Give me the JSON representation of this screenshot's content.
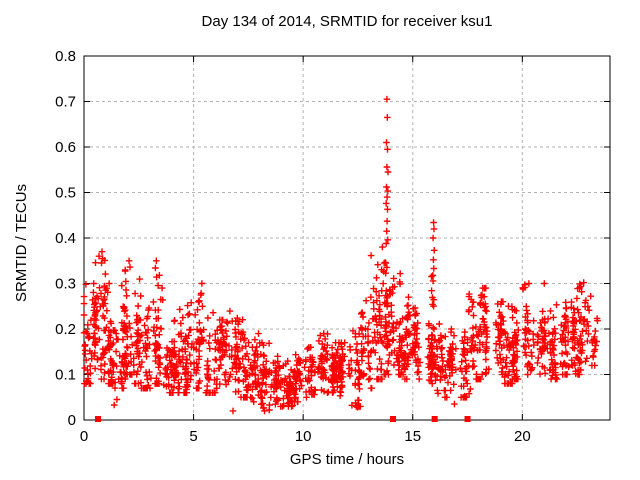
{
  "chart_data": {
    "type": "scatter",
    "title": "Day 134 of 2014, SRMTID for receiver ksu1",
    "xlabel": "GPS time / hours",
    "ylabel": "SRMTID / TECUs",
    "xlim": [
      0,
      24
    ],
    "ylim": [
      0,
      0.8
    ],
    "xticks": [
      0,
      5,
      10,
      15,
      20
    ],
    "xtick_labels": [
      "0",
      "5",
      "10",
      "15",
      "20"
    ],
    "yticks": [
      0,
      0.1,
      0.2,
      0.3,
      0.4,
      0.5,
      0.6,
      0.7,
      0.8
    ],
    "ytick_labels": [
      "0",
      "0.1",
      "0.2",
      "0.3",
      "0.4",
      "0.5",
      "0.6",
      "0.7",
      "0.8"
    ],
    "grid": true,
    "legend": "none",
    "marker": "plus",
    "marker_color": "#ff0000",
    "grid_color": "#b3b3b3",
    "border_color": "#000000",
    "background_color": "#ffffff",
    "density_bins": [
      [
        0.0,
        0.3,
        34,
        0.08,
        0.16,
        0.3
      ],
      [
        0.3,
        0.6,
        30,
        0.1,
        0.18,
        0.3
      ],
      [
        0.6,
        1.0,
        42,
        0.09,
        0.2,
        0.36
      ],
      [
        1.0,
        1.4,
        36,
        0.08,
        0.16,
        0.28
      ],
      [
        1.4,
        1.8,
        36,
        0.07,
        0.14,
        0.26
      ],
      [
        1.8,
        2.3,
        46,
        0.1,
        0.19,
        0.34
      ],
      [
        2.3,
        2.7,
        36,
        0.08,
        0.16,
        0.31
      ],
      [
        2.7,
        3.1,
        36,
        0.07,
        0.14,
        0.26
      ],
      [
        3.1,
        3.6,
        46,
        0.08,
        0.17,
        0.34
      ],
      [
        3.6,
        4.1,
        40,
        0.06,
        0.13,
        0.24
      ],
      [
        4.1,
        4.6,
        40,
        0.06,
        0.13,
        0.25
      ],
      [
        4.6,
        5.1,
        40,
        0.06,
        0.14,
        0.27
      ],
      [
        5.1,
        5.6,
        40,
        0.07,
        0.15,
        0.29
      ],
      [
        5.6,
        6.1,
        40,
        0.06,
        0.13,
        0.24
      ],
      [
        6.1,
        6.6,
        40,
        0.05,
        0.12,
        0.22
      ],
      [
        6.6,
        7.1,
        40,
        0.05,
        0.12,
        0.24
      ],
      [
        7.1,
        7.6,
        40,
        0.05,
        0.12,
        0.27
      ],
      [
        7.6,
        8.1,
        40,
        0.04,
        0.1,
        0.19
      ],
      [
        8.1,
        8.6,
        40,
        0.02,
        0.09,
        0.17
      ],
      [
        8.6,
        9.1,
        40,
        0.03,
        0.08,
        0.14
      ],
      [
        9.1,
        9.6,
        40,
        0.03,
        0.07,
        0.13
      ],
      [
        9.6,
        10.1,
        40,
        0.04,
        0.08,
        0.15
      ],
      [
        10.1,
        10.6,
        40,
        0.05,
        0.1,
        0.18
      ],
      [
        10.6,
        11.1,
        40,
        0.06,
        0.12,
        0.19
      ],
      [
        11.1,
        11.6,
        40,
        0.06,
        0.11,
        0.17
      ],
      [
        11.6,
        12.1,
        40,
        0.04,
        0.1,
        0.17
      ],
      [
        12.1,
        12.6,
        40,
        0.03,
        0.11,
        0.2
      ],
      [
        12.6,
        13.1,
        40,
        0.07,
        0.14,
        0.27
      ],
      [
        13.1,
        13.6,
        46,
        0.09,
        0.19,
        0.38
      ],
      [
        13.6,
        14.05,
        50,
        0.1,
        0.21,
        0.37
      ],
      [
        14.05,
        14.5,
        40,
        0.1,
        0.19,
        0.33
      ],
      [
        14.5,
        15.0,
        40,
        0.09,
        0.17,
        0.27
      ],
      [
        15.0,
        15.5,
        40,
        0.09,
        0.15,
        0.25
      ],
      [
        15.5,
        15.85,
        26,
        0.08,
        0.14,
        0.23
      ],
      [
        15.85,
        16.15,
        30,
        0.08,
        0.17,
        0.32
      ],
      [
        16.15,
        16.6,
        36,
        0.05,
        0.12,
        0.22
      ],
      [
        16.6,
        17.1,
        36,
        0.04,
        0.11,
        0.2
      ],
      [
        17.1,
        17.6,
        36,
        0.05,
        0.12,
        0.22
      ],
      [
        17.6,
        18.1,
        40,
        0.09,
        0.17,
        0.3
      ],
      [
        18.1,
        18.6,
        40,
        0.1,
        0.18,
        0.29
      ],
      [
        18.6,
        19.1,
        40,
        0.09,
        0.16,
        0.26
      ],
      [
        19.1,
        19.6,
        40,
        0.08,
        0.15,
        0.26
      ],
      [
        19.6,
        20.1,
        40,
        0.09,
        0.17,
        0.29
      ],
      [
        20.1,
        20.6,
        40,
        0.1,
        0.18,
        0.3
      ],
      [
        20.6,
        21.1,
        40,
        0.08,
        0.15,
        0.25
      ],
      [
        21.1,
        21.6,
        40,
        0.09,
        0.16,
        0.26
      ],
      [
        21.6,
        22.1,
        40,
        0.1,
        0.17,
        0.28
      ],
      [
        22.1,
        22.6,
        40,
        0.1,
        0.18,
        0.3
      ],
      [
        22.6,
        23.1,
        40,
        0.11,
        0.19,
        0.3
      ],
      [
        23.1,
        23.35,
        16,
        0.12,
        0.2,
        0.29
      ]
    ],
    "outlier_points": [
      [
        13.82,
        0.705
      ],
      [
        13.84,
        0.665
      ],
      [
        13.8,
        0.61
      ],
      [
        13.85,
        0.595
      ],
      [
        13.82,
        0.556
      ],
      [
        13.87,
        0.545
      ],
      [
        13.8,
        0.512
      ],
      [
        13.86,
        0.503
      ],
      [
        13.83,
        0.49
      ],
      [
        13.79,
        0.476
      ],
      [
        13.85,
        0.463
      ],
      [
        13.83,
        0.437
      ],
      [
        13.81,
        0.415
      ],
      [
        13.86,
        0.396
      ],
      [
        13.79,
        0.388
      ],
      [
        15.95,
        0.434
      ],
      [
        15.97,
        0.42
      ],
      [
        15.93,
        0.4
      ],
      [
        15.98,
        0.373
      ],
      [
        15.94,
        0.352
      ],
      [
        15.96,
        0.333
      ],
      [
        15.92,
        0.318
      ],
      [
        0.82,
        0.37
      ],
      [
        0.85,
        0.355
      ],
      [
        0.8,
        0.345
      ],
      [
        2.06,
        0.35
      ],
      [
        2.1,
        0.336
      ],
      [
        3.3,
        0.35
      ],
      [
        3.26,
        0.334
      ],
      [
        5.38,
        0.3
      ],
      [
        1.15,
        0.3
      ],
      [
        1.5,
        0.045
      ],
      [
        1.38,
        0.033
      ],
      [
        6.8,
        0.02
      ],
      [
        8.45,
        0.022
      ],
      [
        12.48,
        0.028
      ],
      [
        16.9,
        0.035
      ],
      [
        20.3,
        0.3
      ],
      [
        21.0,
        0.3
      ],
      [
        22.8,
        0.302
      ]
    ],
    "axis_square_markers_x": [
      0.64,
      14.1,
      16.0,
      17.5
    ]
  }
}
